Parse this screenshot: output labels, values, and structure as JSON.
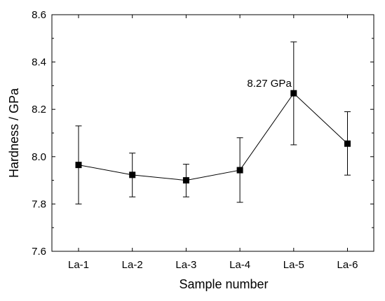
{
  "chart_data": {
    "type": "line",
    "xlabel": "Sample number",
    "ylabel": "Hardness / GPa",
    "categories": [
      "La-1",
      "La-2",
      "La-3",
      "La-4",
      "La-5",
      "La-6"
    ],
    "series": [
      {
        "values": [
          7.965,
          7.923,
          7.9,
          7.943,
          8.268,
          8.055
        ],
        "error_low": [
          7.8,
          7.83,
          7.83,
          7.807,
          8.05,
          7.922
        ],
        "error_high": [
          8.13,
          8.015,
          7.968,
          8.08,
          8.485,
          8.19
        ]
      }
    ],
    "ylim": [
      7.6,
      8.6
    ],
    "yticks": [
      "7.6",
      "7.8",
      "8.0",
      "8.2",
      "8.4",
      "8.6"
    ],
    "annotations": [
      {
        "text": "8.27 GPa",
        "category": "La-5"
      }
    ],
    "grid": false,
    "line_color": "#000000",
    "marker": "square"
  }
}
